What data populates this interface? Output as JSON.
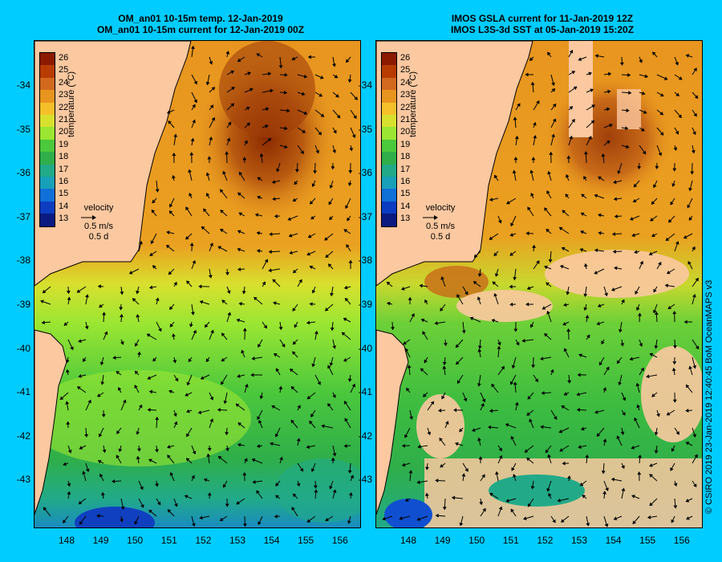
{
  "left_panel": {
    "title_line1": "OM_an01 10-15m temp. 12-Jan-2019",
    "title_line2": "OM_an01 10-15m current for 12-Jan-2019 00Z"
  },
  "right_panel": {
    "title_line1": "IMOS GSLA current for 11-Jan-2019 12Z",
    "title_line2": "IMOS L3S-3d SST at 05-Jan-2019 15:20Z"
  },
  "colorbar": {
    "label": "temperature (°C)",
    "ticks": [
      "26",
      "25",
      "24",
      "23",
      "22",
      "21",
      "20",
      "19",
      "18",
      "17",
      "16",
      "15",
      "14",
      "13"
    ],
    "colors": [
      "#8b1a00",
      "#b83c00",
      "#d2691e",
      "#e8951f",
      "#f5c02a",
      "#d8e02e",
      "#9be632",
      "#4cc83c",
      "#2fae4a",
      "#22aa88",
      "#18a0b8",
      "#1070d8",
      "#0c3cc0",
      "#0a1a80"
    ]
  },
  "velocity_key": {
    "label": "velocity",
    "speed": "0.5 m/s",
    "time": "0.5 d"
  },
  "y_axis_labels": [
    "-34",
    "-35",
    "-36",
    "-37",
    "-38",
    "-39",
    "-40",
    "-41",
    "-42",
    "-43"
  ],
  "x_axis_labels": [
    "148",
    "149",
    "150",
    "151",
    "152",
    "153",
    "154",
    "155",
    "156"
  ],
  "credit": "© CSIRO 2019   23-Jan-2019 12:40:45 BoM OceanMAPS v3",
  "colors": {
    "background": "#00ccff",
    "land": "#fbc8a0",
    "warm_water": "#d2691e",
    "cool_water": "#4cc83c"
  }
}
